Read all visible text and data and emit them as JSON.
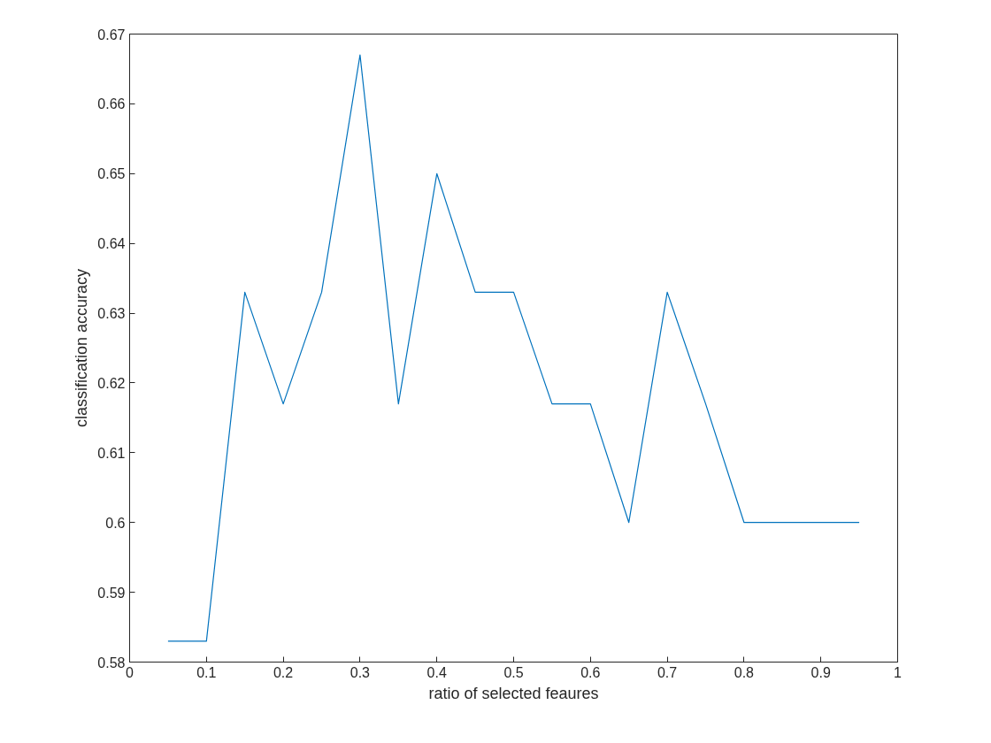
{
  "chart_data": {
    "type": "line",
    "xlabel": "ratio of selected feaures",
    "ylabel": "classification accuracy",
    "x": [
      0.05,
      0.1,
      0.15,
      0.2,
      0.25,
      0.3,
      0.35,
      0.4,
      0.45,
      0.5,
      0.55,
      0.6,
      0.65,
      0.7,
      0.75,
      0.8,
      0.85,
      0.9,
      0.95
    ],
    "series": [
      {
        "color": "#0072bd",
        "values": [
          0.583,
          0.583,
          0.633,
          0.617,
          0.633,
          0.667,
          0.617,
          0.65,
          0.633,
          0.633,
          0.617,
          0.617,
          0.6,
          0.633,
          0.617,
          0.6,
          0.6,
          0.6,
          0.6
        ]
      }
    ],
    "xlim": [
      0,
      1
    ],
    "ylim": [
      0.58,
      0.67
    ],
    "xticks": [
      0,
      0.1,
      0.2,
      0.3,
      0.4,
      0.5,
      0.6,
      0.7,
      0.8,
      0.9,
      1
    ],
    "yticks": [
      0.58,
      0.59,
      0.6,
      0.61,
      0.62,
      0.63,
      0.64,
      0.65,
      0.66,
      0.67
    ]
  }
}
